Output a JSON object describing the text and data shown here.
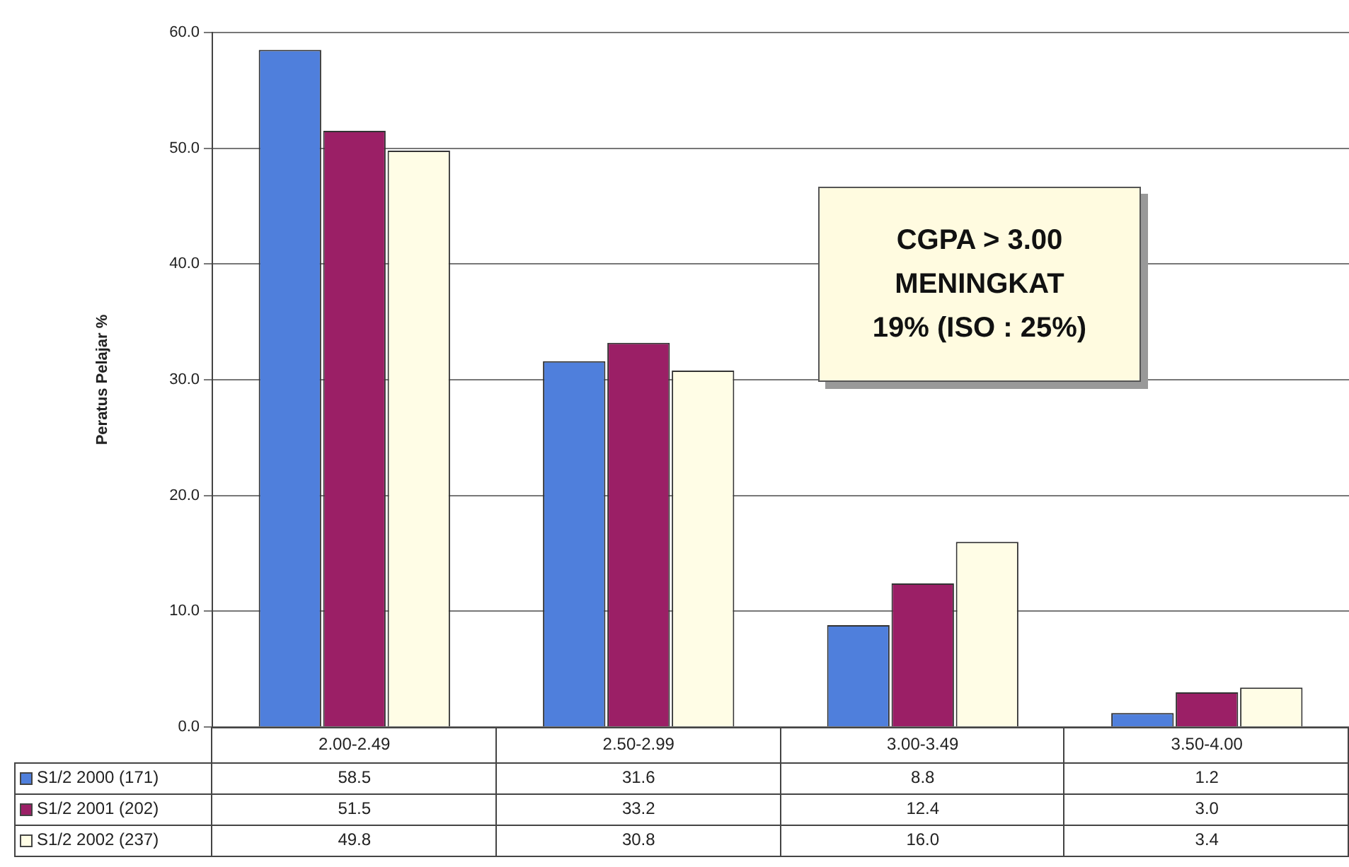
{
  "chart_data": {
    "type": "bar",
    "ylabel": "Peratus Pelajar %",
    "categories": [
      "2.00-2.49",
      "2.50-2.99",
      "3.00-3.49",
      "3.50-4.00"
    ],
    "series": [
      {
        "name": "S1/2 2000 (171)",
        "color": "#4f7fdc",
        "values": [
          58.5,
          31.6,
          8.8,
          1.2
        ],
        "value_labels": [
          "58.5",
          "31.6",
          "8.8",
          "1.2"
        ]
      },
      {
        "name": "S1/2 2001 (202)",
        "color": "#9b1f66",
        "values": [
          51.5,
          33.2,
          12.4,
          3.0
        ],
        "value_labels": [
          "51.5",
          "33.2",
          "12.4",
          "3.0"
        ]
      },
      {
        "name": "S1/2 2002 (237)",
        "color": "#fffde6",
        "values": [
          49.8,
          30.8,
          16.0,
          3.4
        ],
        "value_labels": [
          "49.8",
          "30.8",
          "16.0",
          "3.4"
        ]
      }
    ],
    "ylim": [
      0,
      60
    ],
    "yticks": [
      {
        "value": 0,
        "label": "0.0"
      },
      {
        "value": 10,
        "label": "10.0"
      },
      {
        "value": 20,
        "label": "20.0"
      },
      {
        "value": 30,
        "label": "30.0"
      },
      {
        "value": 40,
        "label": "40.0"
      },
      {
        "value": 50,
        "label": "50.0"
      },
      {
        "value": 60,
        "label": "60.0"
      }
    ],
    "grid": "y",
    "legend": "bottom left",
    "annotations": [
      "CGPA > 3.00\nMENINGKAT\n19% (ISO : 25%)"
    ]
  }
}
